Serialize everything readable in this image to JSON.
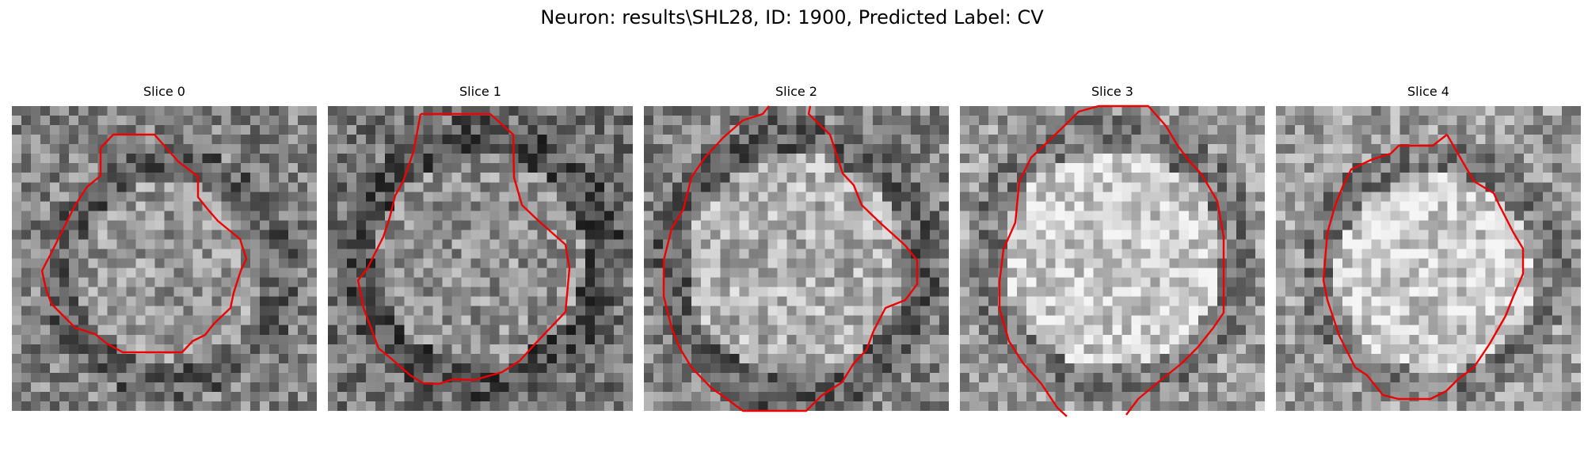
{
  "figure": {
    "title": "Neuron: results\\SHL28, ID: 1900, Predicted Label: CV"
  },
  "colors": {
    "contour": "#ee0000",
    "background": "#ffffff"
  },
  "panels": [
    {
      "title": "Slice 0"
    },
    {
      "title": "Slice 1"
    },
    {
      "title": "Slice 2"
    },
    {
      "title": "Slice 3"
    },
    {
      "title": "Slice 4"
    }
  ]
}
